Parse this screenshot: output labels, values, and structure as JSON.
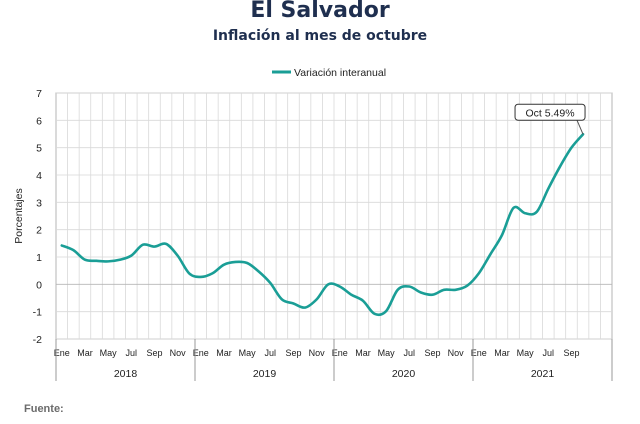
{
  "header": {
    "title": "El Salvador",
    "subtitle": "Inflación al mes de octubre"
  },
  "source_label": "Fuente:",
  "chart_data": {
    "type": "line",
    "title": "El Salvador",
    "subtitle": "Inflación al mes de octubre",
    "ylabel": "Porcentajes",
    "xlabel": "",
    "ylim": [
      -2,
      7
    ],
    "yticks": [
      -2,
      -1,
      0,
      1,
      2,
      3,
      4,
      5,
      6,
      7
    ],
    "grid": true,
    "legend_position": "top-center",
    "month_labels": [
      "Ene",
      "Mar",
      "May",
      "Jul",
      "Sep",
      "Nov",
      "Ene",
      "Mar",
      "May",
      "Jul",
      "Sep",
      "Nov",
      "Ene",
      "Mar",
      "May",
      "Jul",
      "Sep",
      "Nov",
      "Ene",
      "Mar",
      "May",
      "Jul",
      "Sep"
    ],
    "years": [
      "2018",
      "2019",
      "2020",
      "2021"
    ],
    "series": [
      {
        "name": "Variación interanual",
        "color": "#1a9e96",
        "x": [
          "2018-01",
          "2018-02",
          "2018-03",
          "2018-04",
          "2018-05",
          "2018-06",
          "2018-07",
          "2018-08",
          "2018-09",
          "2018-10",
          "2018-11",
          "2018-12",
          "2019-01",
          "2019-02",
          "2019-03",
          "2019-04",
          "2019-05",
          "2019-06",
          "2019-07",
          "2019-08",
          "2019-09",
          "2019-10",
          "2019-11",
          "2019-12",
          "2020-01",
          "2020-02",
          "2020-03",
          "2020-04",
          "2020-05",
          "2020-06",
          "2020-07",
          "2020-08",
          "2020-09",
          "2020-10",
          "2020-11",
          "2020-12",
          "2021-01",
          "2021-02",
          "2021-03",
          "2021-04",
          "2021-05",
          "2021-06",
          "2021-07",
          "2021-08",
          "2021-09",
          "2021-10"
        ],
        "values": [
          1.42,
          1.25,
          0.9,
          0.86,
          0.84,
          0.9,
          1.05,
          1.45,
          1.38,
          1.48,
          1.05,
          0.4,
          0.27,
          0.4,
          0.72,
          0.82,
          0.78,
          0.47,
          0.05,
          -0.55,
          -0.7,
          -0.85,
          -0.55,
          0.0,
          -0.08,
          -0.38,
          -0.6,
          -1.08,
          -0.98,
          -0.2,
          -0.08,
          -0.3,
          -0.38,
          -0.2,
          -0.2,
          -0.05,
          0.4,
          1.1,
          1.8,
          2.8,
          2.6,
          2.65,
          3.5,
          4.3,
          5.0,
          5.49
        ]
      }
    ],
    "annotation": {
      "text": "Oct 5.49%",
      "x": "2021-10",
      "y": 5.49
    }
  }
}
